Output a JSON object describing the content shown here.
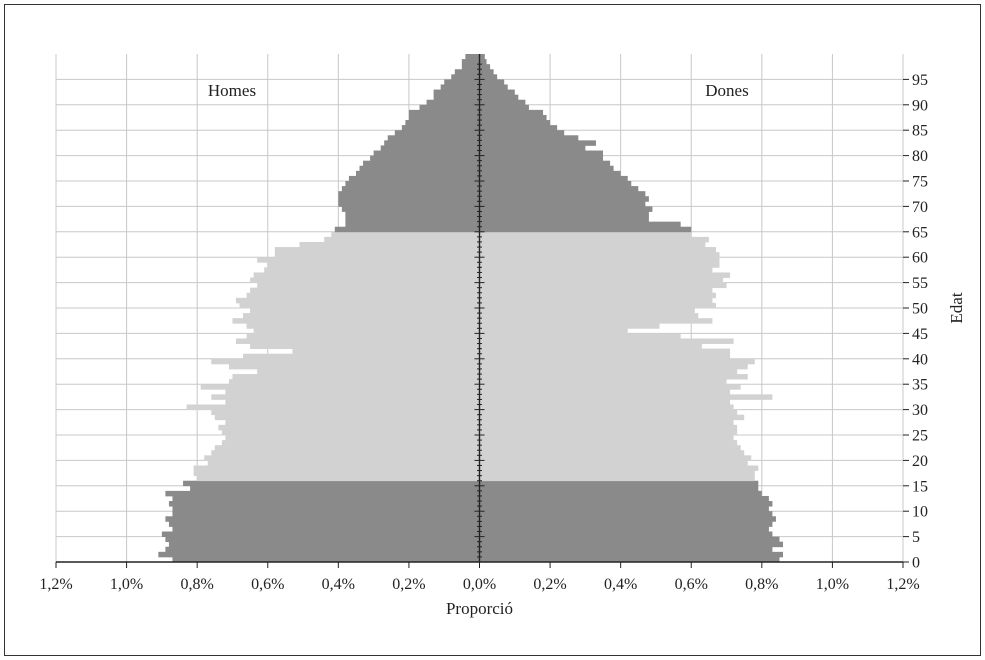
{
  "chart_data": {
    "type": "bar",
    "orientation": "horizontal",
    "subtype": "population-pyramid",
    "xlabel": "Proporció",
    "ylabel": "Edat",
    "x_tick_labels": [
      "1,2%",
      "1,0%",
      "0,8%",
      "0,6%",
      "0,4%",
      "0,2%",
      "0,0%",
      "0,2%",
      "0,4%",
      "0,6%",
      "0,8%",
      "1,0%",
      "1,2%"
    ],
    "x_tick_values": [
      -1.2,
      -1.0,
      -0.8,
      -0.6,
      -0.4,
      -0.2,
      0.0,
      0.2,
      0.4,
      0.6,
      0.8,
      1.0,
      1.2
    ],
    "xlim": [
      -1.2,
      1.2
    ],
    "y_tick_labels": [
      "0",
      "5",
      "10",
      "15",
      "20",
      "25",
      "30",
      "35",
      "40",
      "45",
      "50",
      "55",
      "60",
      "65",
      "70",
      "75",
      "80",
      "85",
      "90",
      "95"
    ],
    "ylim": [
      0,
      100
    ],
    "age_groups": {
      "dark_color": "#8a8a8a",
      "light_color": "#d2d2d2",
      "light_range": [
        16,
        64
      ]
    },
    "grid": true,
    "series": [
      {
        "name": "Homes",
        "values": [
          0.87,
          0.91,
          0.89,
          0.88,
          0.89,
          0.9,
          0.87,
          0.88,
          0.89,
          0.87,
          0.87,
          0.88,
          0.87,
          0.89,
          0.82,
          0.84,
          0.8,
          0.81,
          0.81,
          0.77,
          0.78,
          0.76,
          0.75,
          0.73,
          0.72,
          0.73,
          0.74,
          0.72,
          0.75,
          0.76,
          0.83,
          0.72,
          0.76,
          0.72,
          0.79,
          0.71,
          0.7,
          0.63,
          0.71,
          0.76,
          0.67,
          0.53,
          0.65,
          0.69,
          0.66,
          0.64,
          0.66,
          0.7,
          0.67,
          0.65,
          0.68,
          0.69,
          0.66,
          0.65,
          0.63,
          0.65,
          0.64,
          0.61,
          0.6,
          0.63,
          0.58,
          0.58,
          0.51,
          0.44,
          0.42,
          0.41,
          0.38,
          0.38,
          0.38,
          0.39,
          0.4,
          0.4,
          0.4,
          0.39,
          0.38,
          0.37,
          0.35,
          0.34,
          0.33,
          0.31,
          0.3,
          0.28,
          0.27,
          0.26,
          0.24,
          0.22,
          0.21,
          0.2,
          0.2,
          0.17,
          0.15,
          0.13,
          0.13,
          0.11,
          0.1,
          0.08,
          0.07,
          0.05,
          0.05,
          0.04,
          0.03,
          0.025,
          0.02,
          0.015,
          0.01,
          0.008,
          0.005
        ]
      },
      {
        "name": "Dones",
        "values": [
          0.85,
          0.86,
          0.83,
          0.86,
          0.85,
          0.83,
          0.82,
          0.83,
          0.84,
          0.83,
          0.82,
          0.83,
          0.82,
          0.8,
          0.79,
          0.79,
          0.78,
          0.78,
          0.79,
          0.76,
          0.77,
          0.75,
          0.74,
          0.73,
          0.72,
          0.73,
          0.73,
          0.72,
          0.75,
          0.73,
          0.72,
          0.71,
          0.83,
          0.71,
          0.74,
          0.7,
          0.76,
          0.73,
          0.76,
          0.78,
          0.71,
          0.71,
          0.63,
          0.72,
          0.57,
          0.42,
          0.51,
          0.66,
          0.62,
          0.61,
          0.67,
          0.66,
          0.67,
          0.66,
          0.7,
          0.69,
          0.71,
          0.66,
          0.68,
          0.68,
          0.68,
          0.67,
          0.64,
          0.65,
          0.6,
          0.6,
          0.57,
          0.48,
          0.48,
          0.49,
          0.47,
          0.48,
          0.47,
          0.45,
          0.43,
          0.42,
          0.4,
          0.38,
          0.37,
          0.35,
          0.35,
          0.3,
          0.33,
          0.28,
          0.24,
          0.22,
          0.2,
          0.19,
          0.18,
          0.14,
          0.13,
          0.11,
          0.1,
          0.08,
          0.07,
          0.05,
          0.04,
          0.03,
          0.02,
          0.015,
          0.01,
          0.005
        ]
      }
    ]
  }
}
